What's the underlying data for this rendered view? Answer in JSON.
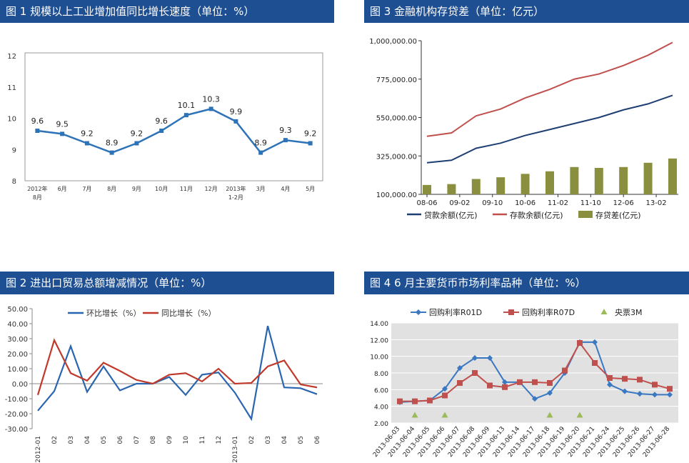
{
  "panels": {
    "fig1": {
      "title": "图 1  规模以上工业增加值同比增长速度（单位：%）"
    },
    "fig2": {
      "title": "图 2  进出口贸易总额增减情况（单位：%）"
    },
    "fig3": {
      "title": "图 3  金融机构存贷差（单位：亿元）"
    },
    "fig4": {
      "title": "图 4  6 月主要货币市场利率品种（单位：%）"
    }
  },
  "chart_data": [
    {
      "id": "fig1",
      "type": "line",
      "title": "规模以上工业增加值同比增长速度（单位：%）",
      "categories": [
        "2012年8月",
        "6月",
        "7月",
        "8月",
        "9月",
        "10月",
        "11月",
        "12月",
        "2013年1-2月",
        "3月",
        "4月",
        "5月"
      ],
      "tick_labels": [
        [
          "2012年",
          "8月"
        ],
        [
          "6月"
        ],
        [
          "7月"
        ],
        [
          "8月"
        ],
        [
          "9月"
        ],
        [
          "10月"
        ],
        [
          "11月"
        ],
        [
          "12月"
        ],
        [
          "2013年",
          "1-2月"
        ],
        [
          "3月"
        ],
        [
          "4月"
        ],
        [
          "5月"
        ]
      ],
      "values": [
        9.6,
        9.5,
        9.2,
        8.9,
        9.2,
        9.6,
        10.1,
        10.3,
        9.9,
        8.9,
        9.3,
        9.2
      ],
      "data_labels": [
        "9.6",
        "9.5",
        "9.2",
        "8.9",
        "9.2",
        "9.6",
        "10.1",
        "10.3",
        "9.9",
        "8.9",
        "9.3",
        "9.2"
      ],
      "ylim": [
        8,
        12
      ],
      "yticks": [
        "8",
        "9",
        "10",
        "11",
        "12"
      ],
      "grid": false,
      "colors": {
        "line": "#2e73b8",
        "marker": "#2e73b8"
      }
    },
    {
      "id": "fig2",
      "type": "line",
      "title": "进出口贸易总额增减情况（单位：%）",
      "categories": [
        "2012-01",
        "02",
        "03",
        "04",
        "05",
        "06",
        "07",
        "08",
        "09",
        "10",
        "11",
        "12",
        "2013-01",
        "02",
        "03",
        "04",
        "05",
        "06"
      ],
      "series": [
        {
          "name": "环比增长（%）",
          "color": "#2a65b0",
          "values": [
            -18.0,
            -5.0,
            25.0,
            -5.5,
            11.5,
            -4.5,
            0.0,
            0.0,
            4.5,
            -7.5,
            6.0,
            7.5,
            -6.0,
            -23.5,
            38.5,
            -2.5,
            -3.0,
            -7.0
          ]
        },
        {
          "name": "同比增长（%）",
          "color": "#c0392b",
          "values": [
            -7.5,
            29.0,
            7.0,
            2.0,
            14.0,
            8.5,
            2.5,
            0.0,
            6.0,
            7.0,
            1.5,
            10.0,
            0.0,
            0.5,
            11.5,
            15.5,
            -0.5,
            -2.5
          ]
        }
      ],
      "ylim": [
        -30,
        50
      ],
      "yticks": [
        "-30.00",
        "-20.00",
        "-10.00",
        "0.00",
        "10.00",
        "20.00",
        "30.00",
        "40.00",
        "50.00"
      ],
      "legend": "top",
      "grid": false
    },
    {
      "id": "fig3",
      "type": "line",
      "title": "金融机构存贷差（单位：亿元）",
      "x_start": "2008-06",
      "x_end": "2013-06",
      "xticks": [
        "08-06",
        "09-02",
        "09-10",
        "10-06",
        "11-02",
        "11-10",
        "12-06",
        "13-02"
      ],
      "yticks": [
        "100,000.00",
        "325,000.00",
        "550,000.00",
        "775,000.00",
        "1,000,000.00"
      ],
      "ylim": [
        100000,
        1000000
      ],
      "series": [
        {
          "name": "贷款余额(亿元)",
          "color": "#1f3f73",
          "kind": "line",
          "x": [
            "2008-06",
            "2008-12",
            "2009-06",
            "2009-12",
            "2010-06",
            "2010-12",
            "2011-06",
            "2011-12",
            "2012-06",
            "2012-12",
            "2013-06"
          ],
          "y": [
            285000,
            300000,
            370000,
            400000,
            445000,
            480000,
            515000,
            550000,
            595000,
            630000,
            680000
          ]
        },
        {
          "name": "存款余额(亿元)",
          "color": "#c0504d",
          "kind": "line",
          "x": [
            "2008-06",
            "2008-12",
            "2009-06",
            "2009-12",
            "2010-06",
            "2010-12",
            "2011-06",
            "2011-12",
            "2012-06",
            "2012-12",
            "2013-06"
          ],
          "y": [
            440000,
            460000,
            560000,
            600000,
            665000,
            715000,
            775000,
            805000,
            855000,
            915000,
            990000
          ]
        },
        {
          "name": "存贷差(亿元)",
          "color": "#8a8f3f",
          "kind": "bar",
          "x": [
            "2008-06",
            "2008-12",
            "2009-06",
            "2009-12",
            "2010-06",
            "2010-12",
            "2011-06",
            "2011-12",
            "2012-06",
            "2012-12",
            "2013-06"
          ],
          "y": [
            155000,
            160000,
            190000,
            200000,
            220000,
            235000,
            260000,
            255000,
            260000,
            285000,
            310000
          ]
        }
      ],
      "legend": "bottom",
      "grid": false
    },
    {
      "id": "fig4",
      "type": "line",
      "title": "6 月主要货币市场利率品种（单位：%）",
      "categories": [
        "2013-06-03",
        "2013-06-04",
        "2013-06-05",
        "2013-06-06",
        "2013-06-07",
        "2013-06-08",
        "2013-06-09",
        "2013-06-13",
        "2013-06-14",
        "2013-06-17",
        "2013-06-18",
        "2013-06-19",
        "2013-06-20",
        "2013-06-21",
        "2013-06-24",
        "2013-06-25",
        "2013-06-26",
        "2013-06-27",
        "2013-06-28"
      ],
      "series": [
        {
          "name": "回购利率R01D",
          "color": "#3a78c2",
          "marker": "diamond",
          "values": [
            4.5,
            4.6,
            4.7,
            6.1,
            8.6,
            9.8,
            9.8,
            6.9,
            6.9,
            4.9,
            5.6,
            8.0,
            11.7,
            11.7,
            6.6,
            5.8,
            5.5,
            5.4,
            5.4
          ]
        },
        {
          "name": "回购利率R07D",
          "color": "#c0504d",
          "marker": "square",
          "values": [
            4.6,
            4.6,
            4.7,
            5.3,
            6.8,
            8.0,
            6.5,
            6.3,
            6.9,
            6.9,
            6.8,
            8.3,
            11.6,
            9.2,
            7.4,
            7.3,
            7.2,
            6.6,
            6.1
          ]
        },
        {
          "name": "央票3M",
          "color": "#9bbb59",
          "marker": "triangle",
          "values": [
            null,
            2.9,
            null,
            2.9,
            null,
            null,
            null,
            null,
            null,
            null,
            2.9,
            null,
            2.9,
            null,
            null,
            null,
            null,
            null,
            null
          ]
        }
      ],
      "ylim": [
        2,
        14
      ],
      "yticks": [
        "2.00",
        "4.00",
        "6.00",
        "8.00",
        "10.00",
        "12.00",
        "14.00"
      ],
      "legend": "top",
      "grid": true,
      "background": "#e1e1e1"
    }
  ]
}
